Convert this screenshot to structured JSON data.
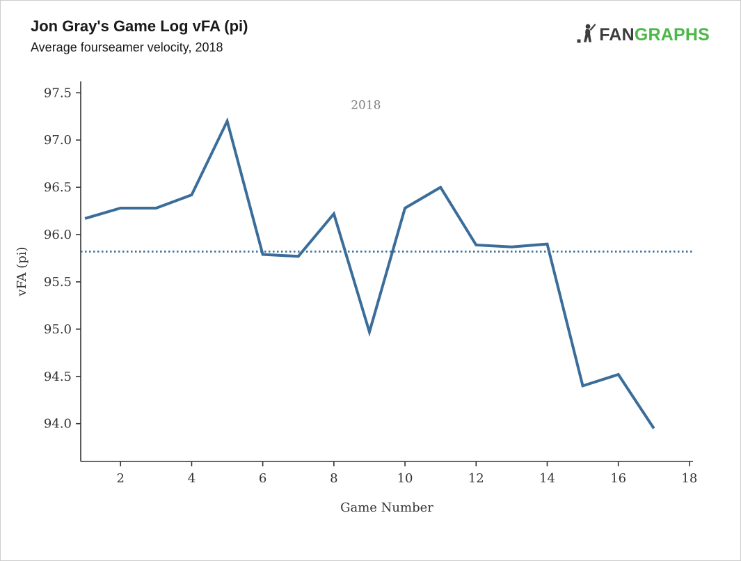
{
  "header": {
    "title": "Jon Gray's Game Log vFA (pi)",
    "subtitle": "Average fourseamer velocity, 2018"
  },
  "logo": {
    "fan": "FAN",
    "graphs": "GRAPHS",
    "fan_color": "#3d3d3d",
    "graphs_color": "#4db848",
    "icon": "fangraphs-batter-icon"
  },
  "chart_data": {
    "type": "line",
    "title": "Jon Gray's Game Log vFA (pi)",
    "subtitle": "Average fourseamer velocity, 2018",
    "xlabel": "Game Number",
    "ylabel": "vFA (pi)",
    "x": [
      1,
      2,
      3,
      4,
      5,
      6,
      7,
      8,
      9,
      10,
      11,
      12,
      13,
      14,
      15,
      16,
      17
    ],
    "series": [
      {
        "name": "vFA (pi)",
        "values": [
          96.17,
          96.28,
          96.28,
          96.42,
          97.2,
          95.79,
          95.77,
          96.22,
          94.97,
          96.28,
          96.5,
          95.89,
          95.87,
          95.9,
          94.4,
          94.52,
          93.95
        ]
      }
    ],
    "average_line": 95.82,
    "annotation": {
      "text": "2018",
      "x": 8.9,
      "y": 97.33,
      "color": "#7f7f7f"
    },
    "x_ticks": [
      2,
      4,
      6,
      8,
      10,
      12,
      14,
      16,
      18
    ],
    "x_tick_labels": [
      "2",
      "4",
      "6",
      "8",
      "10",
      "12",
      "14",
      "16",
      "18"
    ],
    "y_ticks": [
      94.0,
      94.5,
      95.0,
      95.5,
      96.0,
      96.5,
      97.0,
      97.5
    ],
    "y_tick_labels": [
      "94.0",
      "94.5",
      "95.0",
      "95.5",
      "96.0",
      "96.5",
      "97.0",
      "97.5"
    ],
    "xlim": [
      0.88,
      18.1
    ],
    "ylim": [
      93.6,
      97.62
    ],
    "line_color": "#3a6d9a",
    "avg_line_color": "#3a6d9a",
    "axis_color": "#333333",
    "tick_label_color": "#333333",
    "grid": false,
    "legend": "none"
  }
}
